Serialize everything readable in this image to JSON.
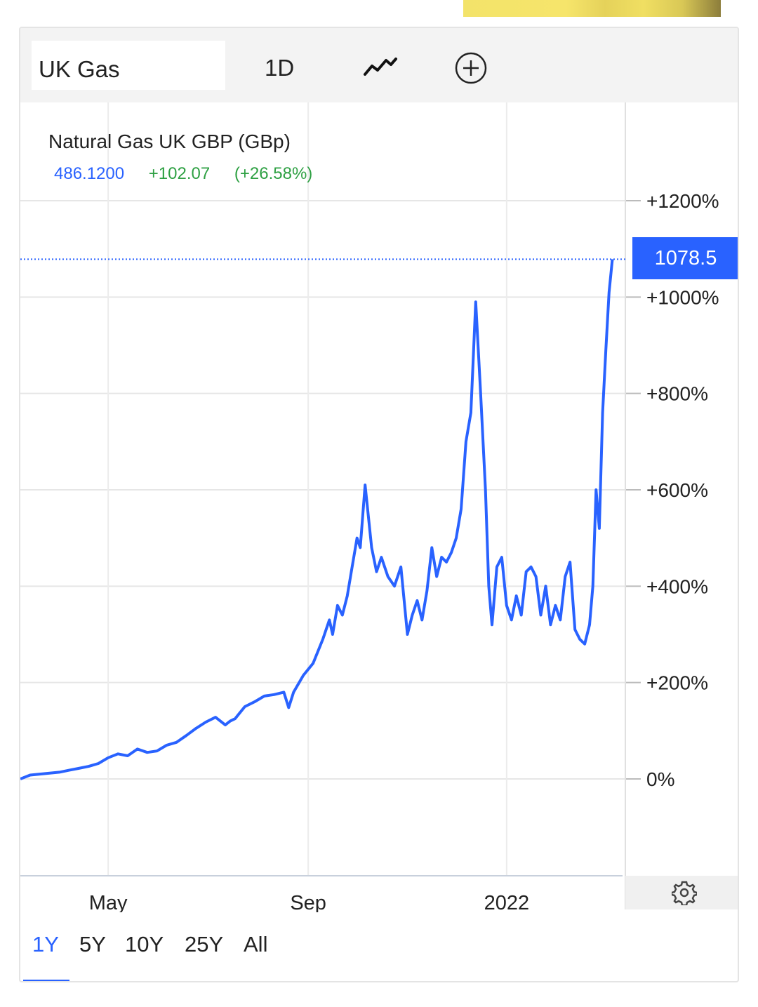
{
  "toolbar": {
    "symbol": "UK Gas",
    "interval": "1D",
    "style_icon": "line-chart-icon",
    "compare_icon": "plus-circle-icon"
  },
  "legend": {
    "title": "Natural Gas UK GBP (GBp)",
    "price": "486.1200",
    "change": "+102.07",
    "change_pct": "(+26.58%)"
  },
  "last_price_label": "1078.5",
  "settings_icon": "gear-icon",
  "ranges": [
    "1Y",
    "5Y",
    "10Y",
    "25Y",
    "All"
  ],
  "active_range": "1Y",
  "colors": {
    "accent": "#2962ff",
    "positive": "#2ea043",
    "line": "#2962ff"
  },
  "chart_data": {
    "type": "line",
    "series": [
      {
        "x": [
          "2021-03-08",
          "2021-03-14",
          "2021-03-20",
          "2021-03-26",
          "2021-04-01",
          "2021-04-07",
          "2021-04-13",
          "2021-04-19",
          "2021-04-25",
          "2021-05-01",
          "2021-05-07",
          "2021-05-13",
          "2021-05-19",
          "2021-05-25",
          "2021-05-31",
          "2021-06-06",
          "2021-06-12",
          "2021-06-18",
          "2021-06-24",
          "2021-06-30",
          "2021-07-06",
          "2021-07-12",
          "2021-07-15",
          "2021-07-18",
          "2021-07-24",
          "2021-07-30",
          "2021-08-05",
          "2021-08-11",
          "2021-08-17",
          "2021-08-20",
          "2021-08-23",
          "2021-08-29",
          "2021-09-04",
          "2021-09-10",
          "2021-09-14",
          "2021-09-16",
          "2021-09-19",
          "2021-09-22",
          "2021-09-25",
          "2021-09-28",
          "2021-10-01",
          "2021-10-03",
          "2021-10-06",
          "2021-10-10",
          "2021-10-13",
          "2021-10-16",
          "2021-10-20",
          "2021-10-24",
          "2021-10-28",
          "2021-11-01",
          "2021-11-04",
          "2021-11-07",
          "2021-11-10",
          "2021-11-13",
          "2021-11-16",
          "2021-11-19",
          "2021-11-22",
          "2021-11-25",
          "2021-11-28",
          "2021-12-01",
          "2021-12-04",
          "2021-12-07",
          "2021-12-10",
          "2021-12-13",
          "2021-12-16",
          "2021-12-19",
          "2021-12-21",
          "2021-12-23",
          "2021-12-26",
          "2021-12-29",
          "2022-01-01",
          "2022-01-04",
          "2022-01-07",
          "2022-01-10",
          "2022-01-13",
          "2022-01-16",
          "2022-01-19",
          "2022-01-22",
          "2022-01-25",
          "2022-01-28",
          "2022-01-31",
          "2022-02-03",
          "2022-02-06",
          "2022-02-09",
          "2022-02-12",
          "2022-02-15",
          "2022-02-18",
          "2022-02-21",
          "2022-02-23",
          "2022-02-25",
          "2022-02-27",
          "2022-03-01",
          "2022-03-03",
          "2022-03-05",
          "2022-03-07"
        ],
        "values": [
          0,
          8,
          10,
          12,
          14,
          18,
          22,
          26,
          32,
          44,
          52,
          48,
          62,
          55,
          58,
          70,
          76,
          90,
          105,
          118,
          128,
          112,
          120,
          125,
          150,
          160,
          172,
          175,
          180,
          148,
          180,
          215,
          240,
          290,
          330,
          300,
          360,
          340,
          380,
          440,
          500,
          480,
          610,
          480,
          430,
          460,
          420,
          400,
          440,
          300,
          340,
          370,
          330,
          390,
          480,
          420,
          460,
          450,
          470,
          500,
          560,
          700,
          760,
          990,
          800,
          600,
          400,
          320,
          440,
          460,
          360,
          330,
          380,
          340,
          430,
          440,
          420,
          340,
          400,
          320,
          360,
          330,
          420,
          450,
          310,
          290,
          280,
          320,
          400,
          600,
          520,
          760,
          890,
          1010,
          1078.5
        ]
      }
    ],
    "y_unit": "%",
    "yticks": [
      "+1200%",
      "+1000%",
      "+800%",
      "+600%",
      "+400%",
      "+200%",
      "0%"
    ],
    "ytick_values": [
      1200,
      1000,
      800,
      600,
      400,
      200,
      0
    ],
    "xticks": [
      "May",
      "Sep",
      "2022"
    ],
    "xtick_dates": [
      "2021-05-01",
      "2021-09-01",
      "2022-01-01"
    ],
    "x_range": [
      "2021-03-08",
      "2022-03-15"
    ],
    "ylim": [
      -200,
      1320
    ],
    "grid": true
  }
}
